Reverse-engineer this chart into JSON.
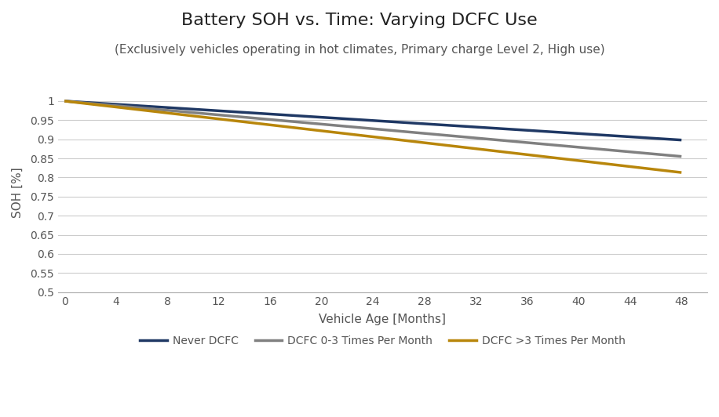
{
  "title": "Battery SOH vs. Time: Varying DCFC Use",
  "subtitle": "(Exclusively vehicles operating in hot climates, Primary charge Level 2, High use)",
  "xlabel": "Vehicle Age [Months]",
  "ylabel": "SOH [%]",
  "x_ticks": [
    0,
    4,
    8,
    12,
    16,
    20,
    24,
    28,
    32,
    36,
    40,
    44,
    48
  ],
  "xlim": [
    -0.5,
    50
  ],
  "ylim": [
    0.5,
    1.02
  ],
  "y_ticks": [
    0.5,
    0.55,
    0.6,
    0.65,
    0.7,
    0.75,
    0.8,
    0.85,
    0.9,
    0.95,
    1.0
  ],
  "y_tick_labels": [
    "0.5",
    "0.55",
    "0.6",
    "0.65",
    "0.7",
    "0.75",
    "0.8",
    "0.85",
    "0.9",
    "0.95",
    "1"
  ],
  "series": [
    {
      "label": "Never DCFC",
      "color": "#1F3864",
      "linewidth": 2.5,
      "x": [
        0,
        48
      ],
      "y": [
        1.0,
        0.898
      ]
    },
    {
      "label": "DCFC 0-3 Times Per Month",
      "color": "#808080",
      "linewidth": 2.5,
      "x": [
        0,
        48
      ],
      "y": [
        1.0,
        0.855
      ]
    },
    {
      "label": "DCFC >3 Times Per Month",
      "color": "#B8860B",
      "linewidth": 2.5,
      "x": [
        0,
        48
      ],
      "y": [
        1.0,
        0.813
      ]
    }
  ],
  "background_color": "#ffffff",
  "grid_color": "#cccccc",
  "title_fontsize": 16,
  "subtitle_fontsize": 11,
  "axis_label_fontsize": 11,
  "tick_fontsize": 10,
  "legend_fontsize": 10
}
